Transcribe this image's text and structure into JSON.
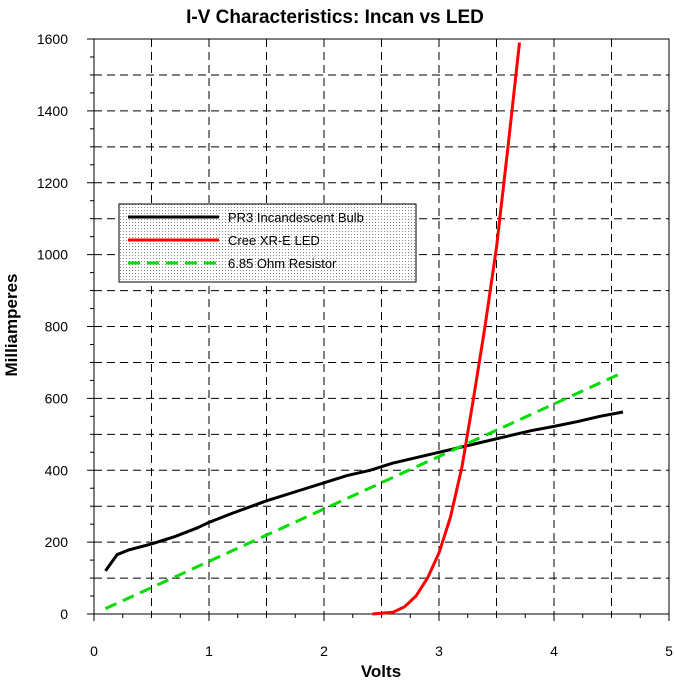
{
  "chart_data": {
    "type": "line",
    "title": "I-V Characteristics: Incan vs LED",
    "xlabel": "Volts",
    "ylabel": "Milliamperes",
    "xlim": [
      0,
      5
    ],
    "ylim": [
      0,
      1600
    ],
    "x_ticks": [
      0,
      1,
      2,
      3,
      4,
      5
    ],
    "y_ticks": [
      0,
      200,
      400,
      600,
      800,
      1000,
      1200,
      1400,
      1600
    ],
    "x_tick_labels": [
      "0",
      "1",
      "2",
      "3",
      "4",
      "5"
    ],
    "y_tick_labels": [
      "0",
      "200",
      "400",
      "600",
      "800",
      "1000",
      "1200",
      "1400",
      "1600"
    ],
    "grid": true,
    "legend_position": "upper-left",
    "series": [
      {
        "name": "PR3 Incandescent Bulb",
        "color": "#000000",
        "dash": "solid",
        "points": [
          [
            0.1,
            120
          ],
          [
            0.2,
            165
          ],
          [
            0.3,
            178
          ],
          [
            0.5,
            195
          ],
          [
            0.7,
            215
          ],
          [
            0.9,
            240
          ],
          [
            1.0,
            255
          ],
          [
            1.2,
            280
          ],
          [
            1.5,
            315
          ],
          [
            1.8,
            345
          ],
          [
            2.0,
            365
          ],
          [
            2.2,
            385
          ],
          [
            2.4,
            400
          ],
          [
            2.6,
            420
          ],
          [
            2.8,
            435
          ],
          [
            3.0,
            450
          ],
          [
            3.2,
            465
          ],
          [
            3.4,
            480
          ],
          [
            3.6,
            495
          ],
          [
            3.8,
            510
          ],
          [
            4.0,
            522
          ],
          [
            4.2,
            535
          ],
          [
            4.4,
            550
          ],
          [
            4.6,
            562
          ]
        ]
      },
      {
        "name": "Cree XR-E LED",
        "color": "#ff0000",
        "dash": "solid",
        "points": [
          [
            2.42,
            0
          ],
          [
            2.5,
            2
          ],
          [
            2.6,
            5
          ],
          [
            2.7,
            20
          ],
          [
            2.8,
            50
          ],
          [
            2.9,
            100
          ],
          [
            3.0,
            170
          ],
          [
            3.1,
            270
          ],
          [
            3.2,
            410
          ],
          [
            3.3,
            600
          ],
          [
            3.4,
            800
          ],
          [
            3.5,
            1020
          ],
          [
            3.6,
            1300
          ],
          [
            3.7,
            1590
          ]
        ]
      },
      {
        "name": "6.85 Ohm Resistor",
        "color": "#00dd00",
        "dash": "dashed",
        "points": [
          [
            0.1,
            15
          ],
          [
            4.6,
            672
          ]
        ]
      }
    ]
  }
}
